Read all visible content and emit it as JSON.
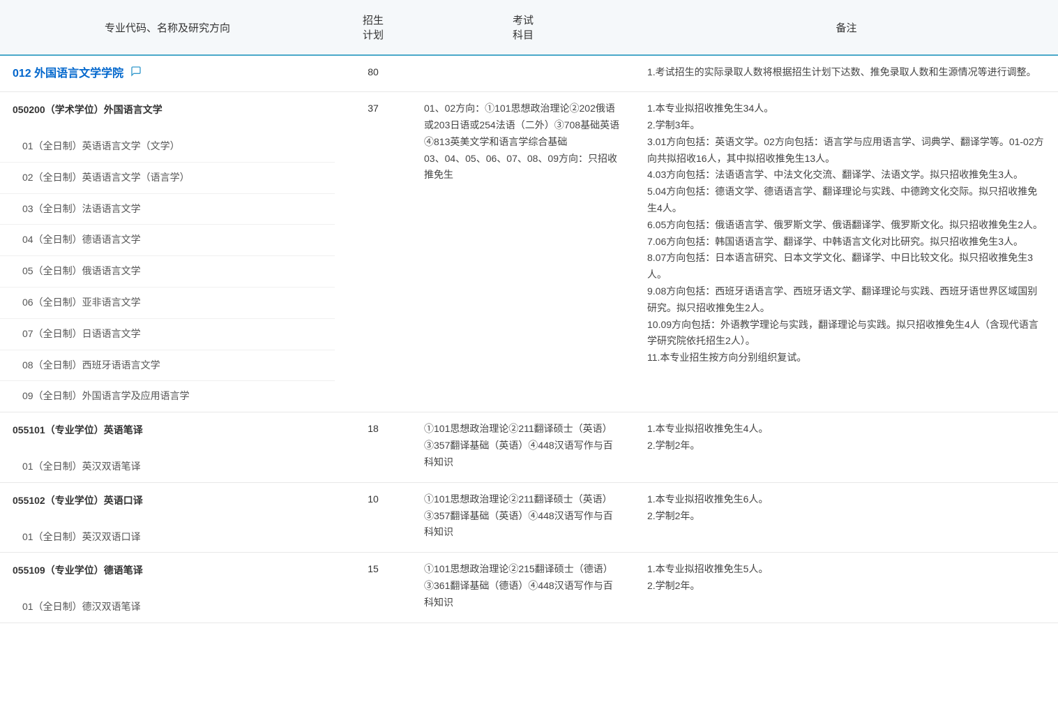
{
  "headers": {
    "col1": "专业代码、名称及研究方向",
    "col2": "招生\n计划",
    "col3": "考试\n科目",
    "col4": "备注"
  },
  "department": {
    "title": "012 外国语言文学学院",
    "plan": "80",
    "note": "1.考试招生的实际录取人数将根据招生计划下达数、推免录取人数和生源情况等进行调整。"
  },
  "majors": [
    {
      "title": "050200（学术学位）外国语言文学",
      "plan": "37",
      "subjects": "01、02方向：①101思想政治理论②202俄语或203日语或254法语（二外）③708基础英语④813英美文学和语言学综合基础\n03、04、05、06、07、08、09方向：只招收推免生",
      "notes": "1.本专业拟招收推免生34人。\n2.学制3年。\n3.01方向包括：英语文学。02方向包括：语言学与应用语言学、词典学、翻译学等。01-02方向共拟招收16人，其中拟招收推免生13人。\n4.03方向包括：法语语言学、中法文化交流、翻译学、法语文学。拟只招收推免生3人。\n5.04方向包括：德语文学、德语语言学、翻译理论与实践、中德跨文化交际。拟只招收推免生4人。\n6.05方向包括：俄语语言学、俄罗斯文学、俄语翻译学、俄罗斯文化。拟只招收推免生2人。\n7.06方向包括：韩国语语言学、翻译学、中韩语言文化对比研究。拟只招收推免生3人。\n8.07方向包括：日本语言研究、日本文学文化、翻译学、中日比较文化。拟只招收推免生3人。\n9.08方向包括：西班牙语语言学、西班牙语文学、翻译理论与实践、西班牙语世界区域国别研究。拟只招收推免生2人。\n10.09方向包括：外语教学理论与实践，翻译理论与实践。拟只招收推免生4人（含现代语言学研究院依托招生2人）。\n11.本专业招生按方向分别组织复试。",
      "directions": [
        "01（全日制）英语语言文学（文学）",
        "02（全日制）英语语言文学（语言学）",
        "03（全日制）法语语言文学",
        "04（全日制）德语语言文学",
        "05（全日制）俄语语言文学",
        "06（全日制）亚非语言文学",
        "07（全日制）日语语言文学",
        "08（全日制）西班牙语语言文学",
        "09（全日制）外国语言学及应用语言学"
      ]
    },
    {
      "title": "055101（专业学位）英语笔译",
      "plan": "18",
      "subjects": "①101思想政治理论②211翻译硕士（英语）③357翻译基础（英语）④448汉语写作与百科知识",
      "notes": "1.本专业拟招收推免生4人。\n2.学制2年。",
      "directions": [
        "01（全日制）英汉双语笔译"
      ]
    },
    {
      "title": "055102（专业学位）英语口译",
      "plan": "10",
      "subjects": "①101思想政治理论②211翻译硕士（英语）③357翻译基础（英语）④448汉语写作与百科知识",
      "notes": "1.本专业拟招收推免生6人。\n2.学制2年。",
      "directions": [
        "01（全日制）英汉双语口译"
      ]
    },
    {
      "title": "055109（专业学位）德语笔译",
      "plan": "15",
      "subjects": "①101思想政治理论②215翻译硕士（德语）③361翻译基础（德语）④448汉语写作与百科知识",
      "notes": "1.本专业拟招收推免生5人。\n2.学制2年。",
      "directions": [
        "01（全日制）德汉双语笔译"
      ]
    }
  ],
  "colors": {
    "header_bg": "#f5f8fa",
    "header_border": "#4aa8c9",
    "link": "#0066cc",
    "row_border": "#e8e8e8",
    "text": "#333333"
  }
}
